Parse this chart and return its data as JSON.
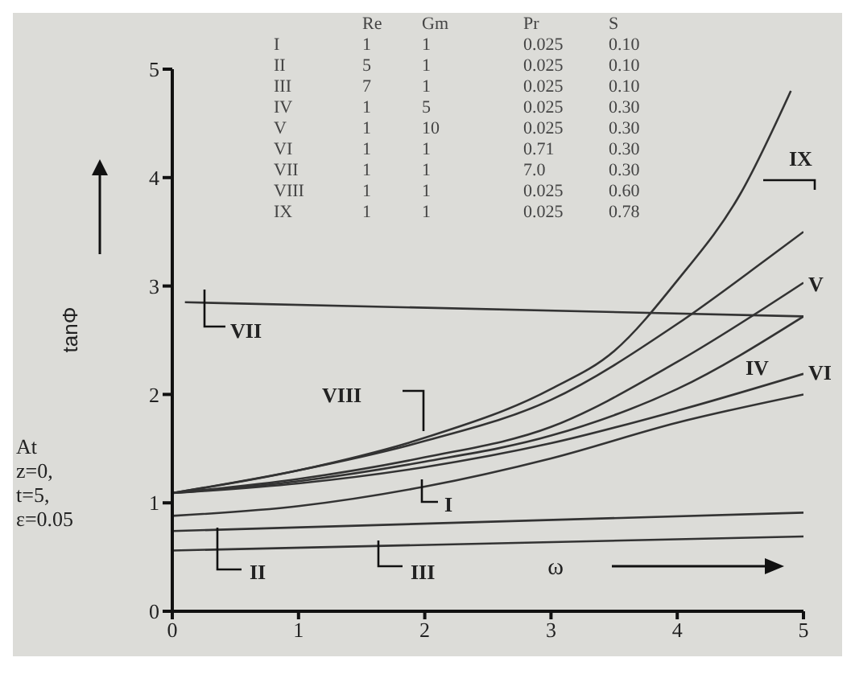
{
  "chart_data": {
    "type": "line",
    "xlabel": "ω",
    "ylabel": "tanΦ",
    "xlim": [
      0,
      5
    ],
    "ylim": [
      0,
      5
    ],
    "xticks": [
      0,
      1,
      2,
      3,
      4,
      5
    ],
    "yticks": [
      0,
      1,
      2,
      3,
      4,
      5
    ],
    "grid": false,
    "legend": false,
    "marker": "none",
    "line_style": "solid",
    "annotations": [
      "Re Gm Pr S",
      "I 1 1 0.025 0.10",
      "II 5 1 0.025 0.10",
      "III 7 1 0.025 0.10",
      "IV 1 5 0.025 0.30",
      "V 1 10 0.025 0.30",
      "VI 1 1 0.71 0.30",
      "VII 1 1 7.0 0.30",
      "VIII 1 1 0.025 0.60",
      "IX 1 1 0.025 0.78",
      "At z=0, t=5, ε=0.05"
    ],
    "series": [
      {
        "name": "I",
        "color": "#333333",
        "x": [
          0,
          1,
          2,
          3,
          4,
          5
        ],
        "values": [
          0.88,
          0.97,
          1.15,
          1.41,
          1.74,
          2.0
        ]
      },
      {
        "name": "II",
        "color": "#333333",
        "x": [
          0,
          5
        ],
        "values": [
          0.74,
          0.91
        ]
      },
      {
        "name": "III",
        "color": "#333333",
        "x": [
          0,
          5
        ],
        "values": [
          0.56,
          0.69
        ]
      },
      {
        "name": "IV",
        "color": "#333333",
        "x": [
          0,
          1,
          2,
          3,
          4,
          5
        ],
        "values": [
          1.09,
          1.2,
          1.38,
          1.62,
          2.05,
          2.72
        ]
      },
      {
        "name": "V",
        "color": "#333333",
        "x": [
          0,
          1,
          2,
          3,
          4,
          5
        ],
        "values": [
          1.09,
          1.22,
          1.42,
          1.7,
          2.3,
          3.03
        ]
      },
      {
        "name": "VI",
        "color": "#333333",
        "x": [
          0,
          1,
          2,
          3,
          4,
          5
        ],
        "values": [
          1.09,
          1.18,
          1.33,
          1.55,
          1.85,
          2.19
        ]
      },
      {
        "name": "VII",
        "color": "#333333",
        "x": [
          0.1,
          5
        ],
        "values": [
          2.85,
          2.72
        ]
      },
      {
        "name": "VIII",
        "color": "#333333",
        "x": [
          0,
          1,
          2,
          3,
          4,
          4.7,
          5
        ],
        "values": [
          1.09,
          1.3,
          1.57,
          1.95,
          2.65,
          3.24,
          3.5
        ]
      },
      {
        "name": "IX",
        "color": "#333333",
        "x": [
          0,
          1,
          2,
          3,
          3.5,
          4,
          4.5,
          4.9
        ],
        "values": [
          1.09,
          1.3,
          1.6,
          2.05,
          2.4,
          3.05,
          3.85,
          4.8
        ]
      }
    ]
  }
}
